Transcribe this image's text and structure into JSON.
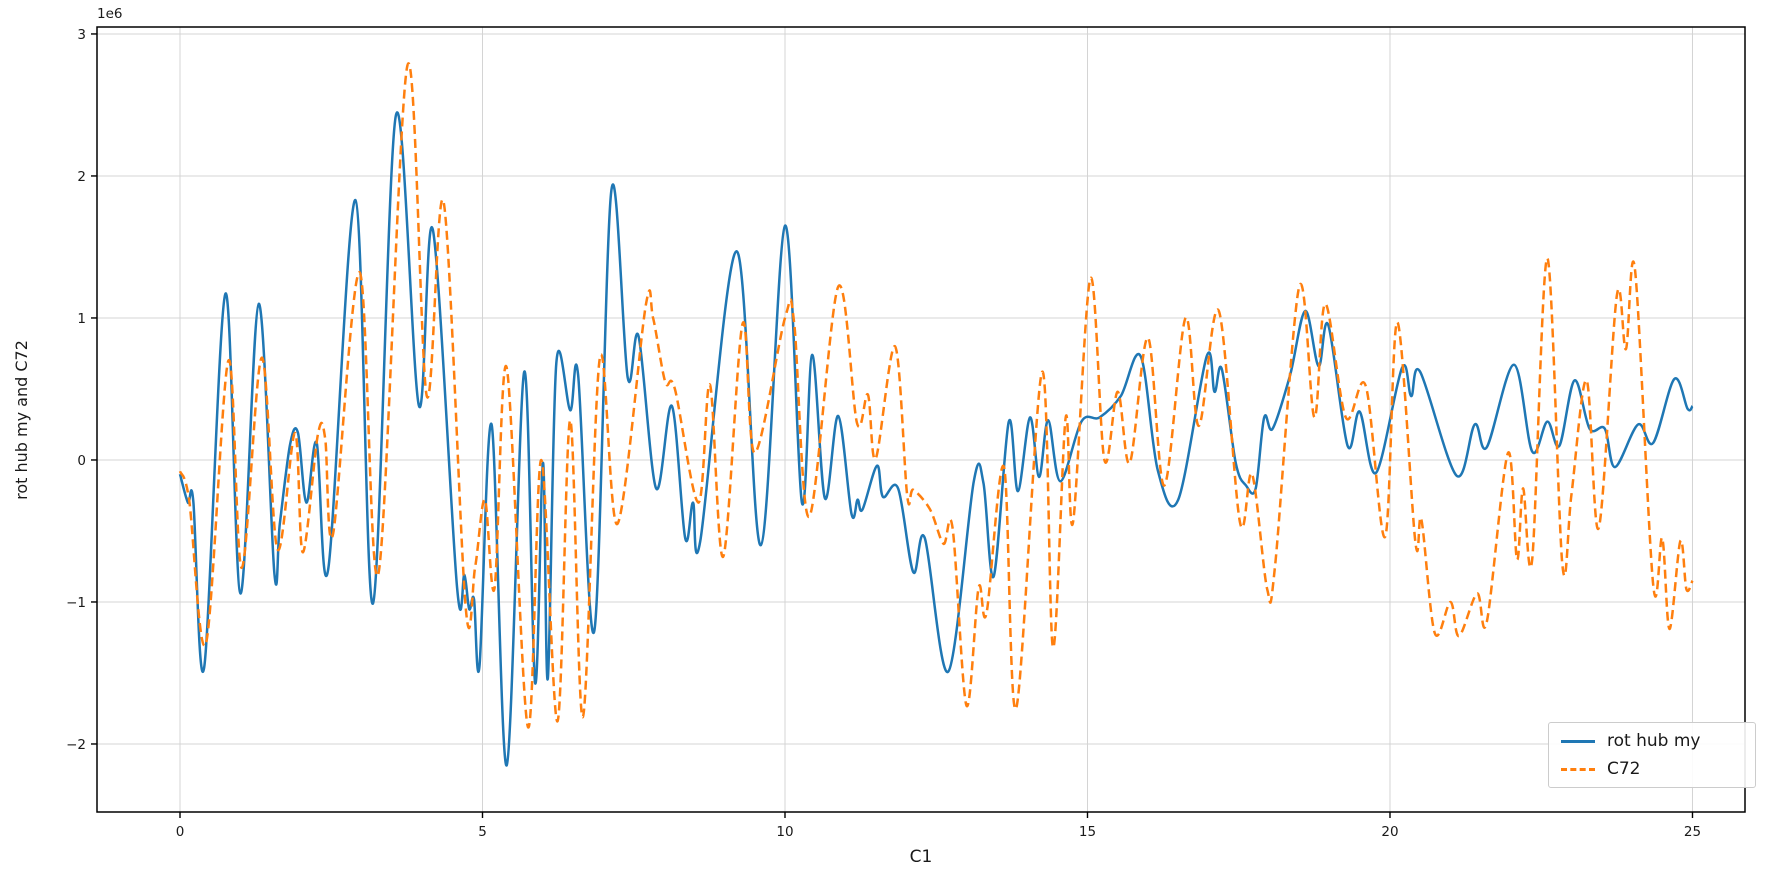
{
  "figure": {
    "background": "#ffffff",
    "xlabel": "C1",
    "ylabel": "rot hub my and C72",
    "offset_text": "1e6"
  },
  "legend": {
    "position": "lower right",
    "items": [
      {
        "label": "rot hub my",
        "color": "#1f77b4",
        "linestyle": "solid"
      },
      {
        "label": "C72",
        "color": "#ff7f0e",
        "linestyle": "dashed"
      }
    ]
  },
  "chart_data": {
    "type": "line",
    "title": "",
    "xlabel": "C1",
    "ylabel": "rot hub my and C72",
    "unit_multiplier": 1000000,
    "offset_text": "1e6",
    "grid": true,
    "xlim": [
      -1.372,
      25.868
    ],
    "ylim": [
      -2.479,
      3.049
    ],
    "x_ticks": [
      0,
      5,
      10,
      15,
      20,
      25
    ],
    "x_tick_labels": [
      "0",
      "5",
      "10",
      "15",
      "20",
      "25"
    ],
    "y_ticks": [
      -2,
      -1,
      0,
      1,
      2,
      3
    ],
    "y_tick_labels": [
      "−2",
      "−1",
      "0",
      "1",
      "2",
      "3"
    ],
    "legend_position": "lower right",
    "series": [
      {
        "name": "rot hub my",
        "color": "#1f77b4",
        "linestyle": "solid",
        "linewidth": 2.5,
        "x": [
          0,
          0.13,
          0.22,
          0.4,
          0.75,
          1.0,
          1.3,
          1.56,
          1.65,
          1.82,
          1.95,
          2.09,
          2.26,
          2.45,
          2.9,
          3.19,
          3.57,
          3.95,
          4.18,
          4.58,
          4.7,
          4.78,
          4.86,
          4.95,
          5.15,
          5.4,
          5.69,
          5.87,
          6.0,
          6.08,
          6.22,
          6.45,
          6.58,
          6.85,
          7.13,
          7.4,
          7.58,
          7.87,
          8.13,
          8.35,
          8.48,
          8.6,
          9.2,
          9.6,
          10.0,
          10.28,
          10.45,
          10.66,
          10.88,
          11.1,
          11.2,
          11.28,
          11.52,
          11.62,
          11.87,
          12.12,
          12.31,
          12.7,
          13.12,
          13.28,
          13.45,
          13.7,
          13.85,
          14.05,
          14.2,
          14.35,
          14.55,
          14.9,
          15.2,
          15.55,
          15.88,
          16.16,
          16.5,
          16.97,
          17.1,
          17.22,
          17.45,
          17.62,
          17.78,
          17.92,
          18.06,
          18.35,
          18.6,
          18.82,
          18.98,
          19.3,
          19.5,
          19.77,
          20.2,
          20.35,
          20.5,
          21.1,
          21.4,
          21.6,
          22.05,
          22.35,
          22.6,
          22.8,
          23.05,
          23.3,
          23.55,
          23.72,
          24.1,
          24.35,
          24.7,
          24.92,
          25.0
        ],
        "y": [
          -0.1,
          -0.3,
          -0.29,
          -1.46,
          1.17,
          -0.94,
          1.1,
          -0.8,
          -0.45,
          0.11,
          0.19,
          -0.3,
          0.12,
          -0.77,
          1.83,
          -1.01,
          2.43,
          0.38,
          1.62,
          -0.9,
          -0.81,
          -1.05,
          -0.98,
          -1.45,
          0.25,
          -2.15,
          0.62,
          -1.57,
          -0.02,
          -1.54,
          0.68,
          0.35,
          0.6,
          -1.2,
          1.9,
          0.58,
          0.87,
          -0.2,
          0.38,
          -0.55,
          -0.3,
          -0.57,
          1.47,
          -0.6,
          1.65,
          -0.3,
          0.74,
          -0.27,
          0.31,
          -0.38,
          -0.28,
          -0.35,
          -0.04,
          -0.26,
          -0.2,
          -0.79,
          -0.55,
          -1.49,
          -0.15,
          -0.16,
          -0.82,
          0.27,
          -0.22,
          0.3,
          -0.12,
          0.28,
          -0.15,
          0.27,
          0.3,
          0.45,
          0.73,
          -0.07,
          -0.28,
          0.73,
          0.48,
          0.64,
          -0.02,
          -0.18,
          -0.2,
          0.3,
          0.22,
          0.6,
          1.05,
          0.66,
          0.95,
          0.1,
          0.34,
          -0.09,
          0.65,
          0.45,
          0.62,
          -0.11,
          0.25,
          0.09,
          0.67,
          0.06,
          0.27,
          0.1,
          0.56,
          0.22,
          0.22,
          -0.05,
          0.25,
          0.12,
          0.57,
          0.36,
          0.38
        ]
      },
      {
        "name": "C72",
        "color": "#ff7f0e",
        "linestyle": "dashed",
        "linewidth": 2.5,
        "x": [
          0,
          0.15,
          0.43,
          0.8,
          1.02,
          1.35,
          1.61,
          1.9,
          2.03,
          2.28,
          2.4,
          2.53,
          2.97,
          3.28,
          3.76,
          4.08,
          4.36,
          4.72,
          4.88,
          5.04,
          5.2,
          5.4,
          5.75,
          5.97,
          6.24,
          6.45,
          6.66,
          6.94,
          7.23,
          7.7,
          7.82,
          8.02,
          8.18,
          8.57,
          8.76,
          8.98,
          9.3,
          9.5,
          10.0,
          10.15,
          10.4,
          10.88,
          11.19,
          11.37,
          11.5,
          11.82,
          12.02,
          12.12,
          12.4,
          12.62,
          12.77,
          13.0,
          13.2,
          13.33,
          13.62,
          13.82,
          14.25,
          14.43,
          14.64,
          14.76,
          15.05,
          15.28,
          15.5,
          15.7,
          16.0,
          16.27,
          16.62,
          16.84,
          17.17,
          17.52,
          17.72,
          17.97,
          18.1,
          18.5,
          18.75,
          18.93,
          19.27,
          19.6,
          19.92,
          20.12,
          20.42,
          20.52,
          20.74,
          21.0,
          21.14,
          21.44,
          21.6,
          21.95,
          22.1,
          22.2,
          22.35,
          22.6,
          22.85,
          23.0,
          23.25,
          23.45,
          23.75,
          23.9,
          24.05,
          24.35,
          24.5,
          24.62,
          24.8,
          24.9,
          25.0
        ],
        "y": [
          -0.08,
          -0.28,
          -1.29,
          0.7,
          -0.76,
          0.72,
          -0.63,
          0.19,
          -0.65,
          0.18,
          0.15,
          -0.52,
          1.32,
          -0.8,
          2.78,
          0.45,
          1.81,
          -1.03,
          -0.75,
          -0.28,
          -0.9,
          0.65,
          -1.88,
          0.0,
          -1.84,
          0.28,
          -1.81,
          0.72,
          -0.45,
          1.09,
          1.0,
          0.55,
          0.5,
          -0.3,
          0.53,
          -0.68,
          0.96,
          0.05,
          1.0,
          0.97,
          -0.4,
          1.22,
          0.26,
          0.46,
          0.01,
          0.8,
          -0.25,
          -0.21,
          -0.35,
          -0.59,
          -0.48,
          -1.73,
          -0.9,
          -1.08,
          -0.05,
          -1.75,
          0.62,
          -1.32,
          0.3,
          -0.44,
          1.28,
          0.0,
          0.48,
          -0.02,
          0.86,
          -0.18,
          1.0,
          0.24,
          1.05,
          -0.44,
          -0.1,
          -0.91,
          -0.75,
          1.22,
          0.3,
          1.1,
          0.3,
          0.52,
          -0.54,
          0.97,
          -0.58,
          -0.42,
          -1.22,
          -1.0,
          -1.24,
          -0.94,
          -1.14,
          0.05,
          -0.7,
          -0.2,
          -0.7,
          1.42,
          -0.74,
          -0.24,
          0.56,
          -0.48,
          1.16,
          0.78,
          1.34,
          -0.88,
          -0.55,
          -1.19,
          -0.57,
          -0.91,
          -0.85
        ]
      }
    ],
    "style": {
      "grid_color": "#d4d4d4",
      "spine_color": "#000000",
      "tick_color": "#1a1a1a"
    }
  }
}
